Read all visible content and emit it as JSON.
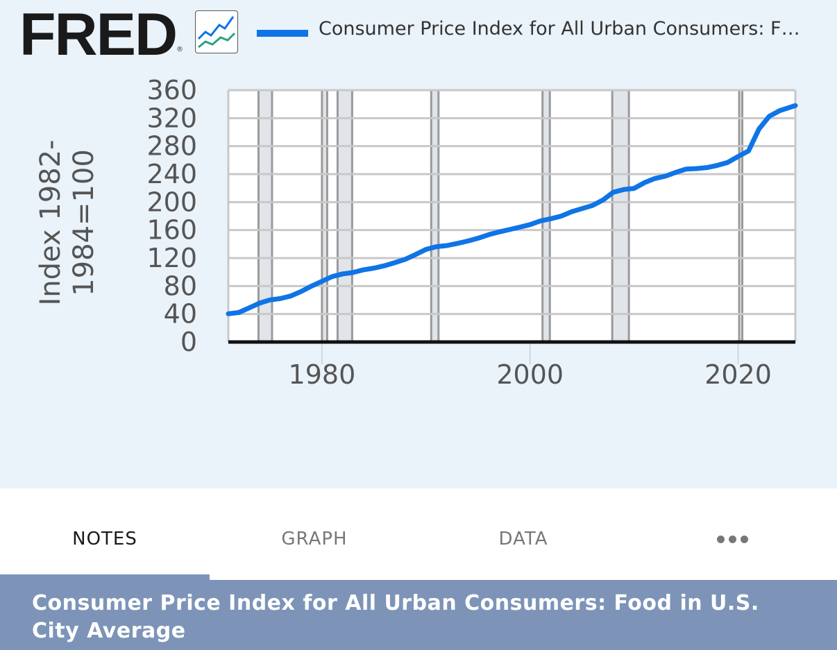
{
  "header": {
    "logo_text": "FRED",
    "logo_reg": "®",
    "logo_icon": "line-chart-icon",
    "legend_label": "Consumer Price Index for All Urban Consumers: F…"
  },
  "tabs": [
    {
      "label": "NOTES",
      "active": true
    },
    {
      "label": "GRAPH",
      "active": false
    },
    {
      "label": "DATA",
      "active": false
    },
    {
      "label": "",
      "icon": "more-icon",
      "active": false
    }
  ],
  "footer": {
    "title": "Consumer Price Index for All Urban Consumers: Food in U.S. City Average"
  },
  "colors": {
    "series": "#0f74e6",
    "background": "#eaf2fa",
    "recession": "#e1e5ea",
    "footer": "#7d94b8"
  },
  "chart_data": {
    "type": "line",
    "title": "",
    "xlabel": "",
    "ylabel": "Index 1982-1984=100",
    "xlim": [
      1971,
      2025.5
    ],
    "ylim": [
      0,
      360
    ],
    "yticks": [
      0,
      40,
      80,
      120,
      160,
      200,
      240,
      280,
      320,
      360
    ],
    "xticks": [
      1980,
      2000,
      2020
    ],
    "grid": true,
    "legend": "top",
    "recessions": [
      [
        1973.9,
        1975.2
      ],
      [
        1980.0,
        1980.5
      ],
      [
        1981.5,
        1982.9
      ],
      [
        1990.5,
        1991.2
      ],
      [
        2001.2,
        2001.9
      ],
      [
        2007.9,
        2009.5
      ],
      [
        2020.1,
        2020.4
      ]
    ],
    "series": [
      {
        "name": "Consumer Price Index for All Urban Consumers: Food in U.S. City Average",
        "x": [
          1971,
          1972,
          1973,
          1974,
          1975,
          1976,
          1977,
          1978,
          1979,
          1980,
          1981,
          1982,
          1983,
          1984,
          1985,
          1986,
          1987,
          1988,
          1989,
          1990,
          1991,
          1992,
          1993,
          1994,
          1995,
          1996,
          1997,
          1998,
          1999,
          2000,
          2001,
          2002,
          2003,
          2004,
          2005,
          2006,
          2007,
          2008,
          2009,
          2010,
          2011,
          2012,
          2013,
          2014,
          2015,
          2016,
          2017,
          2018,
          2019,
          2020,
          2021,
          2022,
          2023,
          2024,
          2025.5
        ],
        "values": [
          40.4,
          42.1,
          48.8,
          55.5,
          60.2,
          62.1,
          65.8,
          72.2,
          79.9,
          86.8,
          93.6,
          97.4,
          99.4,
          103.2,
          105.6,
          109.0,
          113.5,
          118.2,
          125.1,
          132.4,
          136.3,
          137.9,
          140.9,
          144.3,
          148.4,
          153.3,
          157.3,
          160.7,
          164.1,
          167.8,
          173.1,
          176.2,
          180.0,
          186.2,
          190.7,
          195.2,
          202.9,
          214.1,
          218.0,
          219.6,
          227.8,
          233.8,
          237.0,
          242.5,
          247.2,
          247.9,
          249.3,
          252.5,
          256.8,
          265.2,
          273.1,
          304.4,
          322.7,
          330.7,
          338.0
        ]
      }
    ]
  }
}
